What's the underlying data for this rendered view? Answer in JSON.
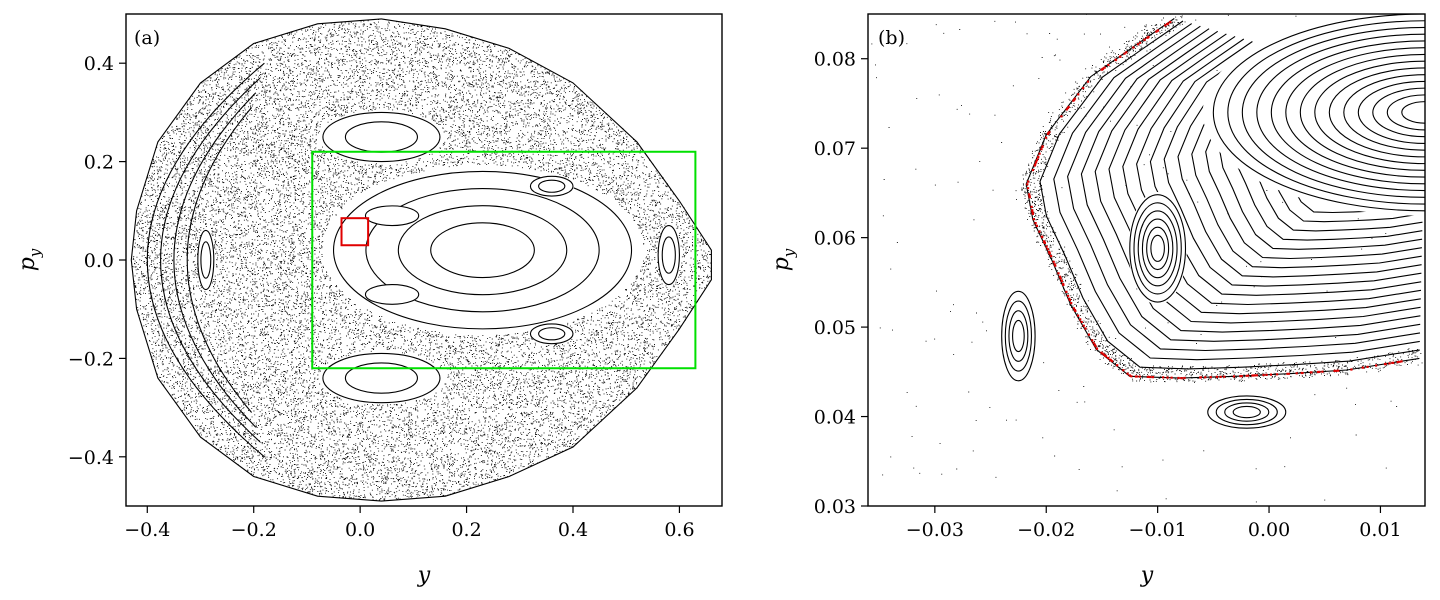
{
  "chart_data": [
    {
      "type": "scatter",
      "panel_label": "(a)",
      "title": "",
      "xlabel": "y",
      "ylabel": "p_y",
      "xlim": [
        -0.44,
        0.68
      ],
      "ylim": [
        -0.5,
        0.5
      ],
      "xticks": [
        -0.4,
        -0.2,
        0.0,
        0.2,
        0.4,
        0.6
      ],
      "xtick_labels": [
        "−0.4",
        "−0.2",
        "0.0",
        "0.2",
        "0.4",
        "0.6"
      ],
      "yticks": [
        -0.4,
        -0.2,
        0.0,
        0.2,
        0.4
      ],
      "ytick_labels": [
        "−0.4",
        "−0.2",
        "0.0",
        "0.2",
        "0.4"
      ],
      "grid": false,
      "boundary_outline": [
        [
          -0.3,
          0.36
        ],
        [
          -0.2,
          0.44
        ],
        [
          -0.08,
          0.48
        ],
        [
          0.04,
          0.49
        ],
        [
          0.16,
          0.47
        ],
        [
          0.28,
          0.43
        ],
        [
          0.4,
          0.36
        ],
        [
          0.52,
          0.24
        ],
        [
          0.6,
          0.12
        ],
        [
          0.66,
          0.02
        ],
        [
          0.66,
          -0.04
        ],
        [
          0.6,
          -0.14
        ],
        [
          0.52,
          -0.26
        ],
        [
          0.4,
          -0.38
        ],
        [
          0.28,
          -0.44
        ],
        [
          0.16,
          -0.48
        ],
        [
          0.04,
          -0.49
        ],
        [
          -0.08,
          -0.48
        ],
        [
          -0.2,
          -0.44
        ],
        [
          -0.3,
          -0.36
        ],
        [
          -0.38,
          -0.24
        ],
        [
          -0.42,
          -0.1
        ],
        [
          -0.43,
          0.0
        ],
        [
          -0.42,
          0.1
        ],
        [
          -0.38,
          0.24
        ]
      ],
      "islands": [
        {
          "center": [
            0.23,
            0.02
          ],
          "ry_half": 0.16,
          "rx_half": 0.28,
          "rings": 4
        },
        {
          "center": [
            0.04,
            0.25
          ],
          "ry_half": 0.05,
          "rx_half": 0.11,
          "rings": 2
        },
        {
          "center": [
            0.04,
            -0.24
          ],
          "ry_half": 0.05,
          "rx_half": 0.11,
          "rings": 2
        },
        {
          "center": [
            0.36,
            0.15
          ],
          "ry_half": 0.02,
          "rx_half": 0.04,
          "rings": 2
        },
        {
          "center": [
            0.36,
            -0.15
          ],
          "ry_half": 0.02,
          "rx_half": 0.04,
          "rings": 2
        },
        {
          "center": [
            0.06,
            0.09
          ],
          "ry_half": 0.02,
          "rx_half": 0.05,
          "rings": 1
        },
        {
          "center": [
            0.06,
            -0.07
          ],
          "ry_half": 0.02,
          "rx_half": 0.05,
          "rings": 1
        },
        {
          "center": [
            0.58,
            0.01
          ],
          "ry_half": 0.06,
          "rx_half": 0.02,
          "rings": 2
        },
        {
          "center": [
            -0.29,
            0.0
          ],
          "ry_half": 0.06,
          "rx_half": 0.015,
          "rings": 2
        }
      ],
      "annotations": [
        {
          "kind": "rectangle",
          "color": "#00e000",
          "x": [
            -0.09,
            0.63
          ],
          "y": [
            -0.22,
            0.22
          ]
        },
        {
          "kind": "rectangle",
          "color": "#e00000",
          "x": [
            -0.035,
            0.015
          ],
          "y": [
            0.03,
            0.085
          ]
        }
      ]
    },
    {
      "type": "scatter",
      "panel_label": "(b)",
      "title": "",
      "xlabel": "y",
      "ylabel": "p_y",
      "xlim": [
        -0.036,
        0.014
      ],
      "ylim": [
        0.03,
        0.085
      ],
      "xticks": [
        -0.03,
        -0.02,
        -0.01,
        0.0,
        0.01
      ],
      "xtick_labels": [
        "−0.03",
        "−0.02",
        "−0.01",
        "0.00",
        "0.01"
      ],
      "yticks": [
        0.03,
        0.04,
        0.05,
        0.06,
        0.07,
        0.08
      ],
      "ytick_labels": [
        "0.03",
        "0.04",
        "0.05",
        "0.06",
        "0.07",
        "0.08"
      ],
      "grid": false,
      "islands": [
        {
          "center": [
            -0.01,
            0.0588
          ],
          "ry_half": 0.006,
          "rx_half": 0.0025,
          "rings": 6
        },
        {
          "center": [
            -0.0225,
            0.049
          ],
          "ry_half": 0.005,
          "rx_half": 0.0015,
          "rings": 4
        },
        {
          "center": [
            -0.002,
            0.0405
          ],
          "ry_half": 0.0018,
          "rx_half": 0.0035,
          "rings": 4
        },
        {
          "center": [
            0.014,
            0.074
          ],
          "ry_half": 0.011,
          "rx_half": 0.019,
          "rings": 14
        }
      ],
      "separatrix_red": [
        [
          -0.0085,
          0.0845
        ],
        [
          -0.012,
          0.0815
        ],
        [
          -0.016,
          0.078
        ],
        [
          -0.02,
          0.0715
        ],
        [
          -0.0218,
          0.066
        ],
        [
          -0.0212,
          0.062
        ],
        [
          -0.0195,
          0.0575
        ],
        [
          -0.0178,
          0.0525
        ],
        [
          -0.0155,
          0.0475
        ],
        [
          -0.0125,
          0.0445
        ],
        [
          -0.008,
          0.0443
        ],
        [
          -0.003,
          0.0445
        ],
        [
          0.002,
          0.0448
        ],
        [
          0.007,
          0.0452
        ],
        [
          0.0135,
          0.0465
        ]
      ]
    }
  ]
}
